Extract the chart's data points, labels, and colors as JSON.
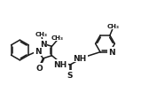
{
  "bg_color": "#ffffff",
  "line_color": "#1a1a1a",
  "lw": 1.1,
  "fs": 6.5,
  "figsize": [
    1.77,
    1.15
  ],
  "dpi": 100,
  "xlim": [
    0,
    17
  ],
  "ylim": [
    0,
    11
  ]
}
